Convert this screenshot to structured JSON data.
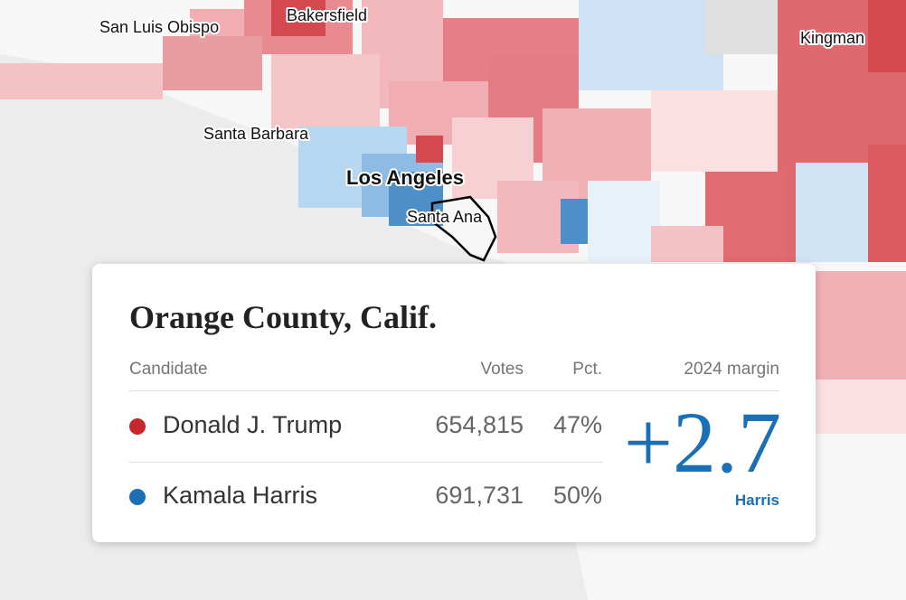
{
  "map_labels": [
    "San Luis Obispo",
    "Bakersfield",
    "Kingman",
    "Santa Barbara",
    "Los Angeles",
    "Santa Ana"
  ],
  "card": {
    "title": "Orange County, Calif.",
    "headers": [
      "Candidate",
      "Votes",
      "Pct.",
      "2024 margin"
    ],
    "rows": [
      [
        "Donald J. Trump",
        "654,815",
        "47%"
      ],
      [
        "Kamala Harris",
        "691,731",
        "50%"
      ]
    ],
    "margin": {
      "value": "+2.7",
      "leader": "Harris"
    }
  }
}
